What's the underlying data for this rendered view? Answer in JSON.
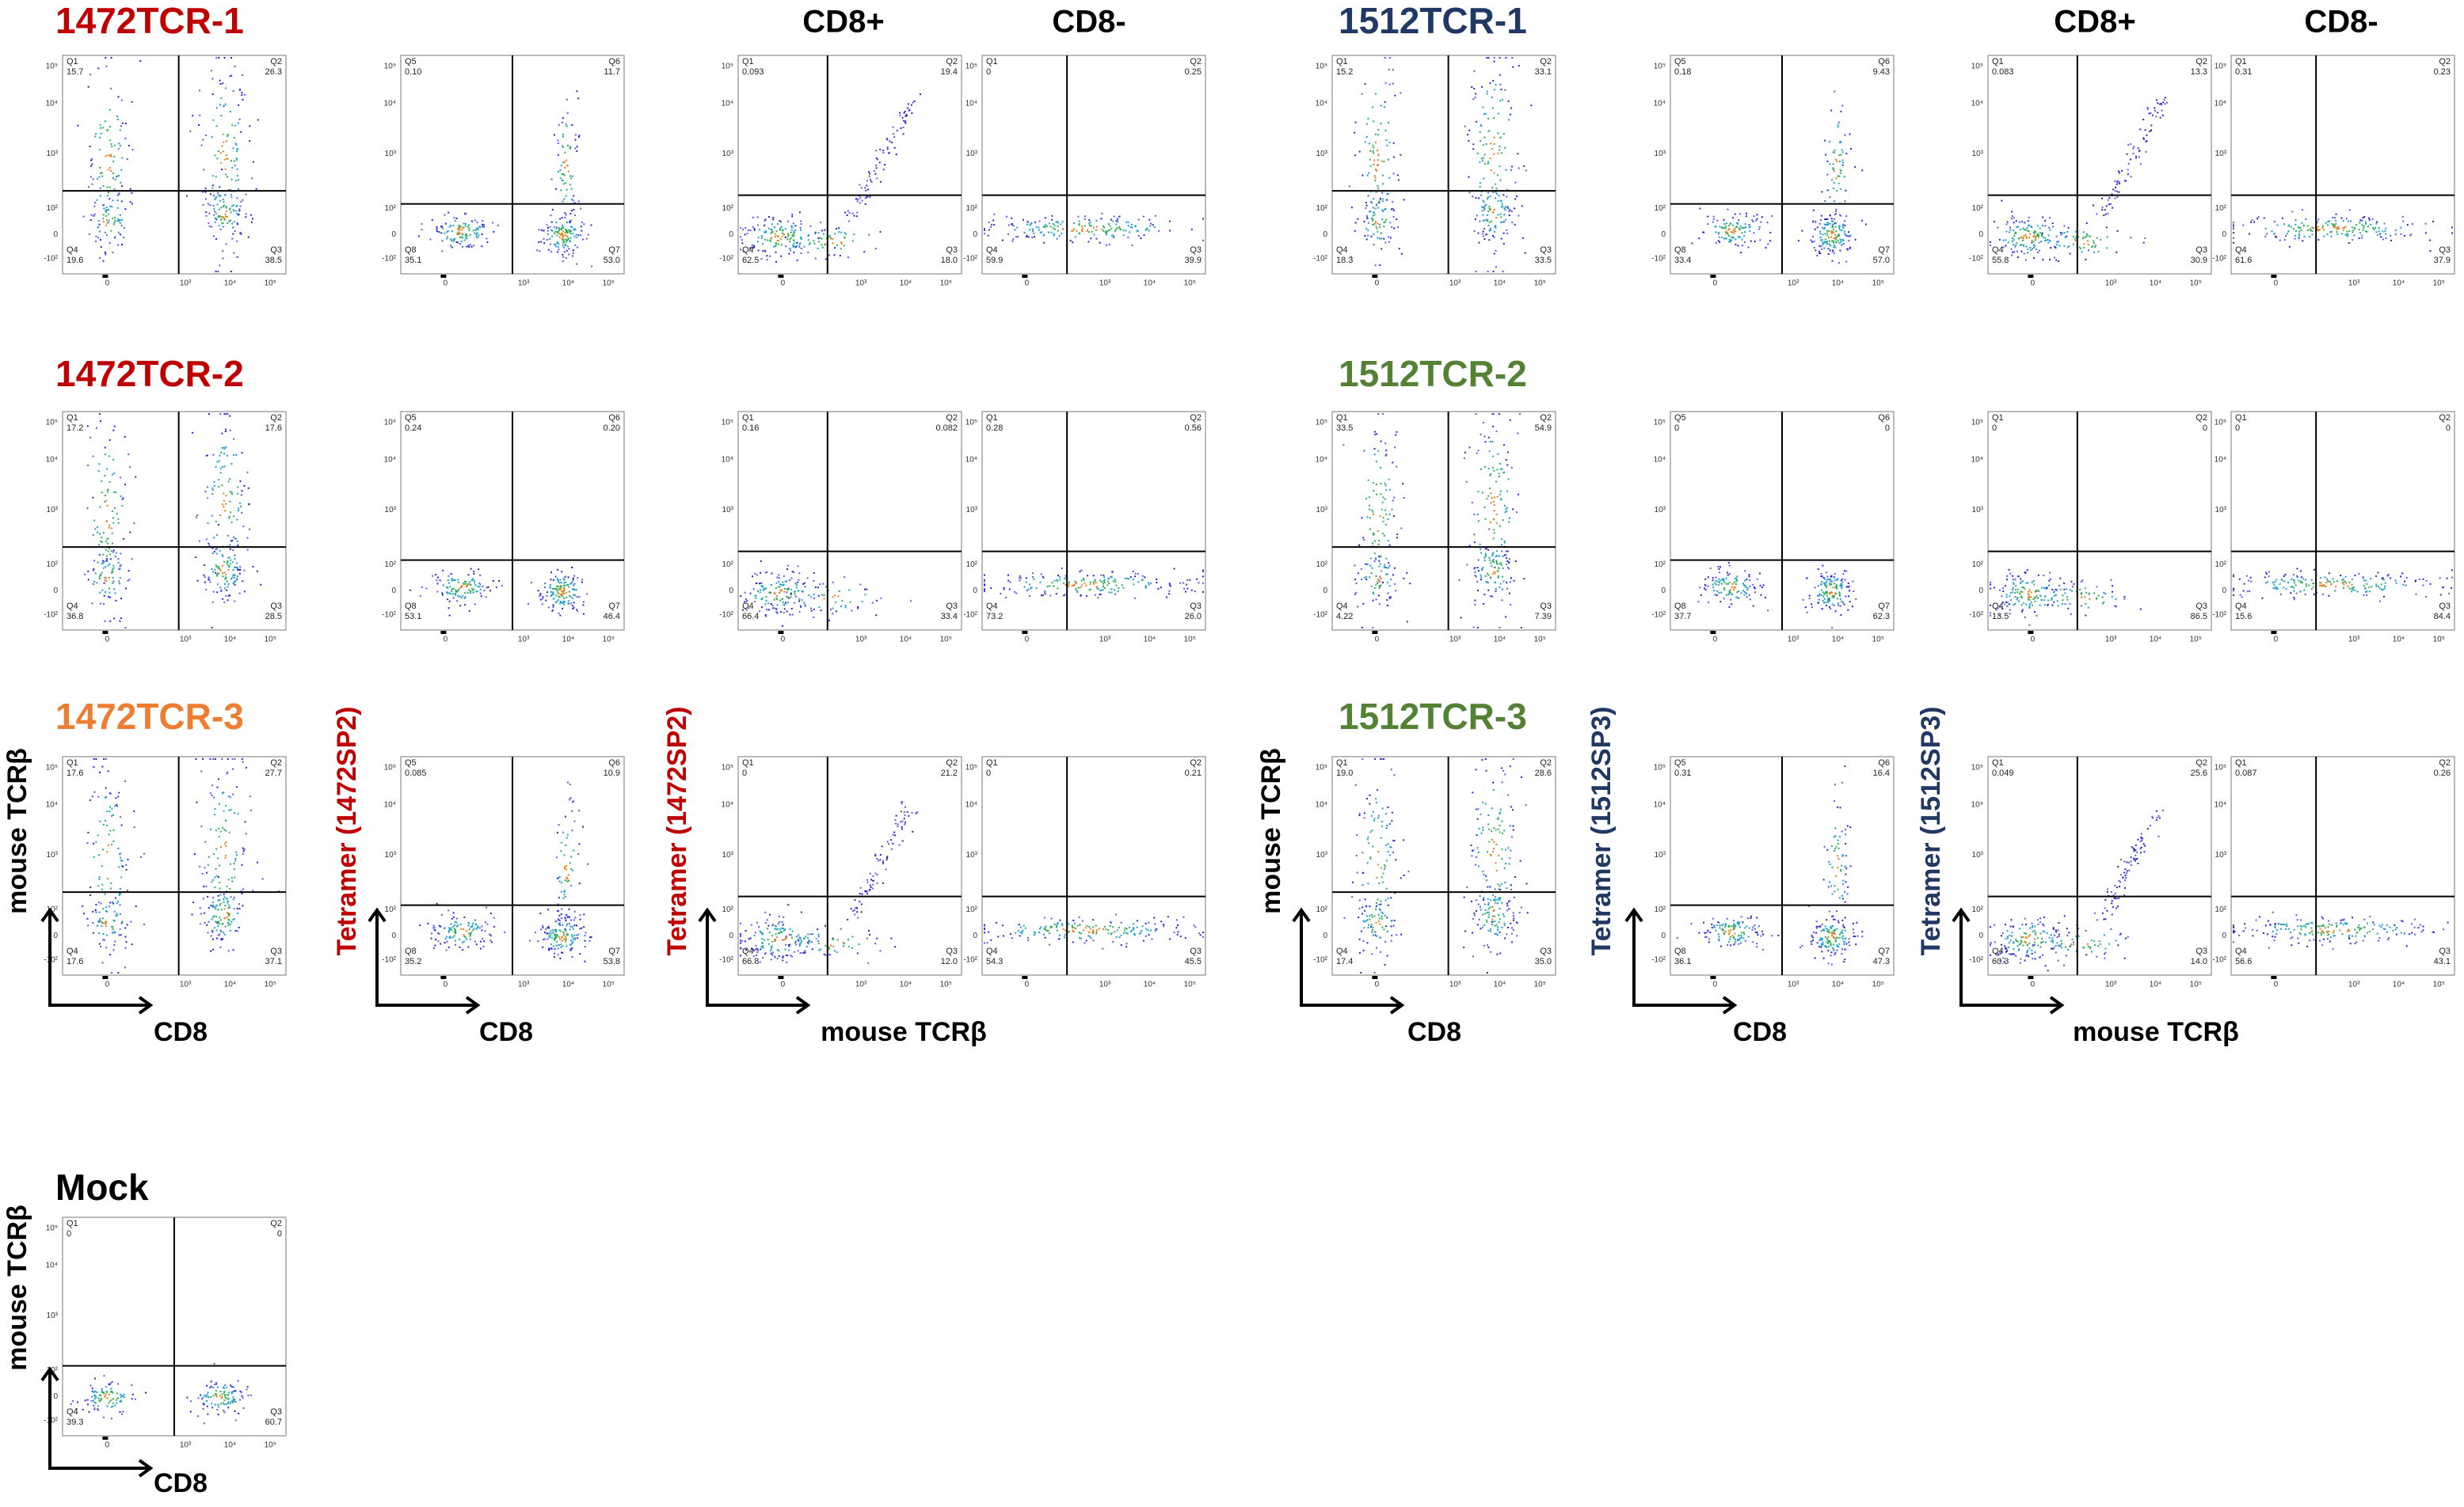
{
  "groups": [
    {
      "headers": [
        "CD8+",
        "CD8-"
      ],
      "axis_labels": [
        {
          "y": "mouse TCRβ",
          "x": "CD8",
          "color": "#000000"
        },
        {
          "y": "Tetramer (1472SP2)",
          "x": "CD8",
          "color": "#c00000"
        },
        {
          "y": "Tetramer (1472SP2)",
          "x": "mouse TCRβ",
          "color": "#c00000"
        }
      ],
      "rows": [
        {
          "title": "1472TCR-1",
          "color": "#c00000",
          "panels": [
            {
              "quadrants": [
                {
                  "name": "Q1",
                  "value": "15.7"
                },
                {
                  "name": "Q2",
                  "value": "26.3"
                },
                {
                  "name": "Q3",
                  "value": "38.5"
                },
                {
                  "name": "Q4",
                  "value": "19.6"
                }
              ]
            },
            {
              "quadrants": [
                {
                  "name": "Q5",
                  "value": "0.10"
                },
                {
                  "name": "Q6",
                  "value": "11.7"
                },
                {
                  "name": "Q7",
                  "value": "53.0"
                },
                {
                  "name": "Q8",
                  "value": "35.1"
                }
              ]
            },
            {
              "quadrants": [
                {
                  "name": "Q1",
                  "value": "0.093"
                },
                {
                  "name": "Q2",
                  "value": "19.4"
                },
                {
                  "name": "Q3",
                  "value": "18.0"
                },
                {
                  "name": "Q4",
                  "value": "62.5"
                }
              ]
            },
            {
              "quadrants": [
                {
                  "name": "Q1",
                  "value": "0"
                },
                {
                  "name": "Q2",
                  "value": "0.25"
                },
                {
                  "name": "Q3",
                  "value": "39.9"
                },
                {
                  "name": "Q4",
                  "value": "59.9"
                }
              ]
            }
          ]
        },
        {
          "title": "1472TCR-2",
          "color": "#c00000",
          "panels": [
            {
              "quadrants": [
                {
                  "name": "Q1",
                  "value": "17.2"
                },
                {
                  "name": "Q2",
                  "value": "17.6"
                },
                {
                  "name": "Q3",
                  "value": "28.5"
                },
                {
                  "name": "Q4",
                  "value": "36.8"
                }
              ]
            },
            {
              "quadrants": [
                {
                  "name": "Q5",
                  "value": "0.24"
                },
                {
                  "name": "Q6",
                  "value": "0.20"
                },
                {
                  "name": "Q7",
                  "value": "46.4"
                },
                {
                  "name": "Q8",
                  "value": "53.1"
                }
              ]
            },
            {
              "quadrants": [
                {
                  "name": "Q1",
                  "value": "0.16"
                },
                {
                  "name": "Q2",
                  "value": "0.082"
                },
                {
                  "name": "Q3",
                  "value": "33.4"
                },
                {
                  "name": "Q4",
                  "value": "66.4"
                }
              ]
            },
            {
              "quadrants": [
                {
                  "name": "Q1",
                  "value": "0.28"
                },
                {
                  "name": "Q2",
                  "value": "0.56"
                },
                {
                  "name": "Q3",
                  "value": "26.0"
                },
                {
                  "name": "Q4",
                  "value": "73.2"
                }
              ]
            }
          ]
        },
        {
          "title": "1472TCR-3",
          "color": "#ed7d31",
          "panels": [
            {
              "quadrants": [
                {
                  "name": "Q1",
                  "value": "17.6"
                },
                {
                  "name": "Q2",
                  "value": "27.7"
                },
                {
                  "name": "Q3",
                  "value": "37.1"
                },
                {
                  "name": "Q4",
                  "value": "17.6"
                }
              ]
            },
            {
              "quadrants": [
                {
                  "name": "Q5",
                  "value": "0.085"
                },
                {
                  "name": "Q6",
                  "value": "10.9"
                },
                {
                  "name": "Q7",
                  "value": "53.8"
                },
                {
                  "name": "Q8",
                  "value": "35.2"
                }
              ]
            },
            {
              "quadrants": [
                {
                  "name": "Q1",
                  "value": "0"
                },
                {
                  "name": "Q2",
                  "value": "21.2"
                },
                {
                  "name": "Q3",
                  "value": "12.0"
                },
                {
                  "name": "Q4",
                  "value": "66.8"
                }
              ]
            },
            {
              "quadrants": [
                {
                  "name": "Q1",
                  "value": "0"
                },
                {
                  "name": "Q2",
                  "value": "0.21"
                },
                {
                  "name": "Q3",
                  "value": "45.5"
                },
                {
                  "name": "Q4",
                  "value": "54.3"
                }
              ]
            }
          ]
        }
      ]
    },
    {
      "headers": [
        "CD8+",
        "CD8-"
      ],
      "axis_labels": [
        {
          "y": "mouse TCRβ",
          "x": "CD8",
          "color": "#000000"
        },
        {
          "y": "Tetramer (1512SP3)",
          "x": "CD8",
          "color": "#1f3864"
        },
        {
          "y": "Tetramer (1512SP3)",
          "x": "mouse TCRβ",
          "color": "#1f3864"
        }
      ],
      "rows": [
        {
          "title": "1512TCR-1",
          "color": "#1f3864",
          "panels": [
            {
              "quadrants": [
                {
                  "name": "Q1",
                  "value": "15.2"
                },
                {
                  "name": "Q2",
                  "value": "33.1"
                },
                {
                  "name": "Q3",
                  "value": "33.5"
                },
                {
                  "name": "Q4",
                  "value": "18.3"
                }
              ]
            },
            {
              "quadrants": [
                {
                  "name": "Q5",
                  "value": "0.18"
                },
                {
                  "name": "Q6",
                  "value": "9.43"
                },
                {
                  "name": "Q7",
                  "value": "57.0"
                },
                {
                  "name": "Q8",
                  "value": "33.4"
                }
              ]
            },
            {
              "quadrants": [
                {
                  "name": "Q1",
                  "value": "0.083"
                },
                {
                  "name": "Q2",
                  "value": "13.3"
                },
                {
                  "name": "Q3",
                  "value": "30.9"
                },
                {
                  "name": "Q4",
                  "value": "55.8"
                }
              ]
            },
            {
              "quadrants": [
                {
                  "name": "Q1",
                  "value": "0.31"
                },
                {
                  "name": "Q2",
                  "value": "0.23"
                },
                {
                  "name": "Q3",
                  "value": "37.9"
                },
                {
                  "name": "Q4",
                  "value": "61.6"
                }
              ]
            }
          ]
        },
        {
          "title": "1512TCR-2",
          "color": "#548235",
          "panels": [
            {
              "quadrants": [
                {
                  "name": "Q1",
                  "value": "33.5"
                },
                {
                  "name": "Q2",
                  "value": "54.9"
                },
                {
                  "name": "Q3",
                  "value": "7.39"
                },
                {
                  "name": "Q4",
                  "value": "4.22"
                }
              ]
            },
            {
              "quadrants": [
                {
                  "name": "Q5",
                  "value": "0"
                },
                {
                  "name": "Q6",
                  "value": "0"
                },
                {
                  "name": "Q7",
                  "value": "62.3"
                },
                {
                  "name": "Q8",
                  "value": "37.7"
                }
              ]
            },
            {
              "quadrants": [
                {
                  "name": "Q1",
                  "value": "0"
                },
                {
                  "name": "Q2",
                  "value": "0"
                },
                {
                  "name": "Q3",
                  "value": "86.5"
                },
                {
                  "name": "Q4",
                  "value": "13.5"
                }
              ]
            },
            {
              "quadrants": [
                {
                  "name": "Q1",
                  "value": "0"
                },
                {
                  "name": "Q2",
                  "value": "0"
                },
                {
                  "name": "Q3",
                  "value": "84.4"
                },
                {
                  "name": "Q4",
                  "value": "15.6"
                }
              ]
            }
          ]
        },
        {
          "title": "1512TCR-3",
          "color": "#548235",
          "panels": [
            {
              "quadrants": [
                {
                  "name": "Q1",
                  "value": "19.0"
                },
                {
                  "name": "Q2",
                  "value": "28.6"
                },
                {
                  "name": "Q3",
                  "value": "35.0"
                },
                {
                  "name": "Q4",
                  "value": "17.4"
                }
              ]
            },
            {
              "quadrants": [
                {
                  "name": "Q5",
                  "value": "0.31"
                },
                {
                  "name": "Q6",
                  "value": "16.4"
                },
                {
                  "name": "Q7",
                  "value": "47.3"
                },
                {
                  "name": "Q8",
                  "value": "36.1"
                }
              ]
            },
            {
              "quadrants": [
                {
                  "name": "Q1",
                  "value": "0.049"
                },
                {
                  "name": "Q2",
                  "value": "25.6"
                },
                {
                  "name": "Q3",
                  "value": "14.0"
                },
                {
                  "name": "Q4",
                  "value": "60.3"
                }
              ]
            },
            {
              "quadrants": [
                {
                  "name": "Q1",
                  "value": "0.087"
                },
                {
                  "name": "Q2",
                  "value": "0.26"
                },
                {
                  "name": "Q3",
                  "value": "43.1"
                },
                {
                  "name": "Q4",
                  "value": "56.6"
                }
              ]
            }
          ]
        }
      ]
    }
  ],
  "mock": {
    "title": "Mock",
    "color": "#000000",
    "axis_labels": {
      "y": "mouse TCRβ",
      "x": "CD8"
    },
    "panel": {
      "quadrants": [
        {
          "name": "Q1",
          "value": "0"
        },
        {
          "name": "Q2",
          "value": "0"
        },
        {
          "name": "Q3",
          "value": "60.7"
        },
        {
          "name": "Q4",
          "value": "39.3"
        }
      ]
    }
  },
  "axis_ticks": {
    "y": [
      "10⁵",
      "10⁴",
      "10³",
      "10²",
      "0",
      "-10²"
    ],
    "x": [
      "0",
      "10³",
      "10⁴",
      "10⁵"
    ]
  }
}
